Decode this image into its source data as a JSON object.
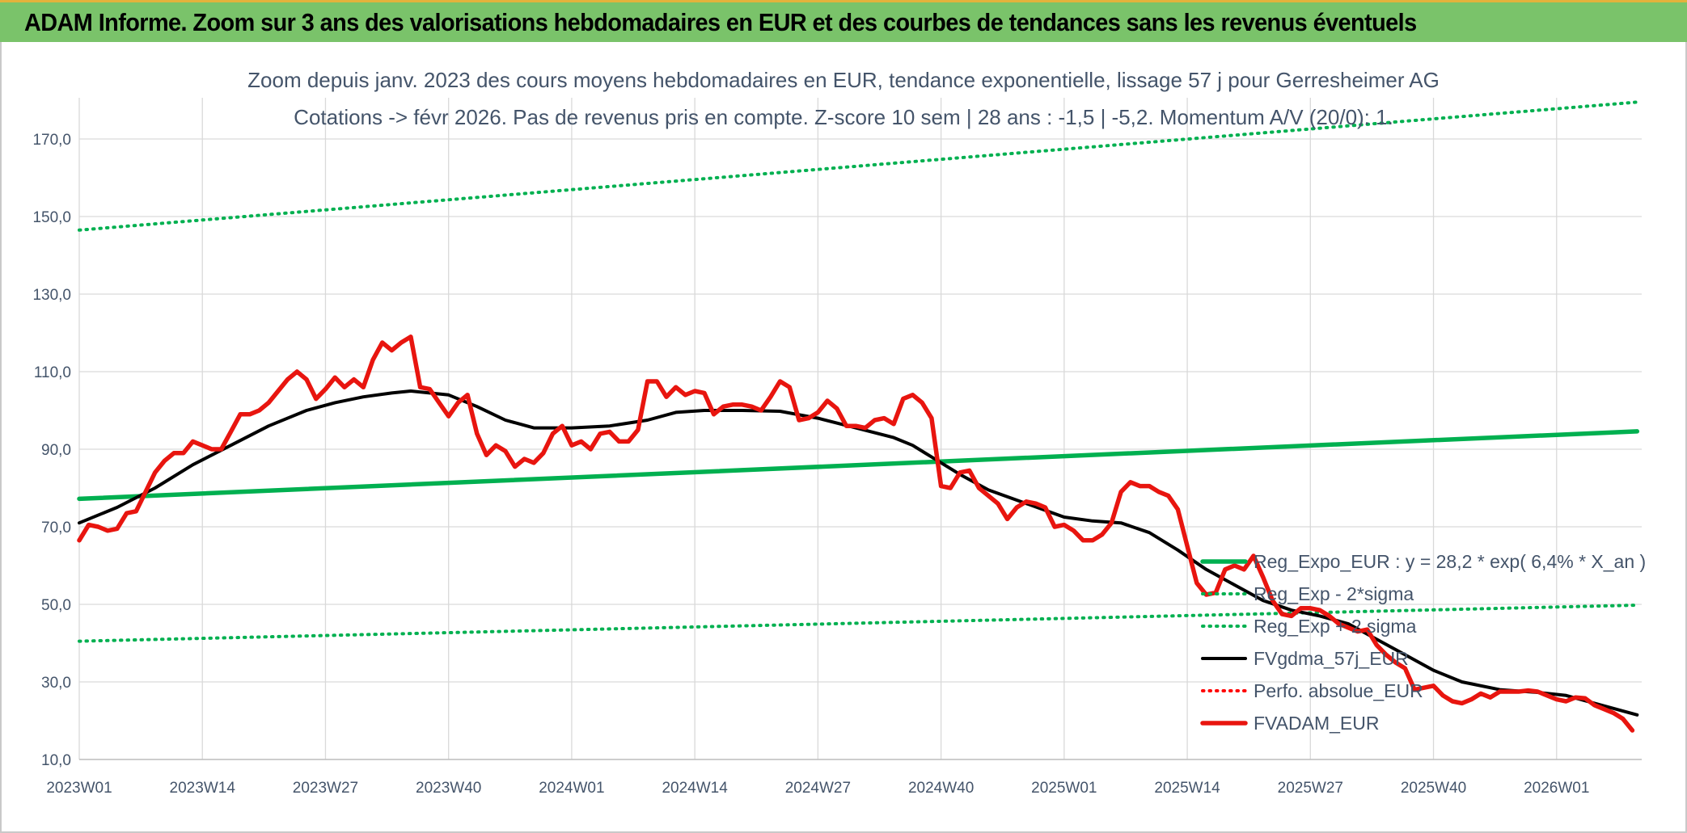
{
  "banner": {
    "title": "ADAM Informe. Zoom sur 3 ans des valorisations hebdomadaires en EUR et des courbes de tendances sans les revenus éventuels"
  },
  "chart_data": {
    "type": "line",
    "title": "Zoom depuis janv. 2023 des cours moyens hebdomadaires en EUR, tendance exponentielle, lissage 57 j pour Gerresheimer AG",
    "subtitle": "Cotations -> févr 2026. Pas de revenus pris en compte. Z-score 10 sem | 28 ans : -1,5 | -5,2. Momentum A/V (20/0): 1.",
    "xlabel": "",
    "ylabel": "",
    "ylim": [
      10,
      180
    ],
    "y_ticks": [
      10,
      30,
      50,
      70,
      90,
      110,
      130,
      150,
      170
    ],
    "y_tick_labels": [
      "10,0",
      "30,0",
      "50,0",
      "70,0",
      "90,0",
      "110,0",
      "130,0",
      "150,0",
      "170,0"
    ],
    "x_ticks": [
      {
        "week": 0,
        "label": "2023W01"
      },
      {
        "week": 13,
        "label": "2023W14"
      },
      {
        "week": 26,
        "label": "2023W27"
      },
      {
        "week": 39,
        "label": "2023W40"
      },
      {
        "week": 52,
        "label": "2024W01"
      },
      {
        "week": 65,
        "label": "2024W14"
      },
      {
        "week": 78,
        "label": "2024W27"
      },
      {
        "week": 91,
        "label": "2024W40"
      },
      {
        "week": 104,
        "label": "2025W01"
      },
      {
        "week": 117,
        "label": "2025W14"
      },
      {
        "week": 130,
        "label": "2025W27"
      },
      {
        "week": 143,
        "label": "2025W40"
      },
      {
        "week": 156,
        "label": "2026W01"
      }
    ],
    "xlim": [
      0,
      164.5
    ],
    "grid": true,
    "legend_position": "bottom-right",
    "series": [
      {
        "name": "Reg_Expo_EUR : y = 28,2 * exp( 6,4% *  X_an )",
        "color": "#00b050",
        "style": "solid-thick",
        "points": [
          [
            0,
            77.2
          ],
          [
            164.5,
            94.6
          ]
        ]
      },
      {
        "name": "Reg_Exp - 2*sigma",
        "color": "#00b050",
        "style": "dotted",
        "points": [
          [
            0,
            40.5
          ],
          [
            164.5,
            49.8
          ]
        ]
      },
      {
        "name": "Reg_Exp + 2 sigma",
        "color": "#00b050",
        "style": "dotted",
        "points": [
          [
            0,
            146.5
          ],
          [
            164.5,
            179.5
          ]
        ]
      },
      {
        "name": "FVgdma_57j_EUR",
        "color": "#000000",
        "style": "solid",
        "points": [
          [
            0,
            71
          ],
          [
            4,
            75
          ],
          [
            8,
            80
          ],
          [
            12,
            86
          ],
          [
            16,
            91
          ],
          [
            20,
            96
          ],
          [
            24,
            100
          ],
          [
            27,
            102
          ],
          [
            30,
            103.5
          ],
          [
            33,
            104.5
          ],
          [
            35,
            105
          ],
          [
            39,
            104
          ],
          [
            42,
            101
          ],
          [
            45,
            97.5
          ],
          [
            48,
            95.5
          ],
          [
            52,
            95.5
          ],
          [
            56,
            96
          ],
          [
            60,
            97.5
          ],
          [
            63,
            99.5
          ],
          [
            66,
            100
          ],
          [
            70,
            100
          ],
          [
            74,
            99.8
          ],
          [
            78,
            98
          ],
          [
            82,
            95.5
          ],
          [
            86,
            93
          ],
          [
            88,
            91
          ],
          [
            90,
            88
          ],
          [
            93,
            83.5
          ],
          [
            96,
            79.5
          ],
          [
            100,
            76
          ],
          [
            104,
            72.5
          ],
          [
            107,
            71.5
          ],
          [
            110,
            71
          ],
          [
            113,
            68.5
          ],
          [
            116,
            64
          ],
          [
            119,
            59
          ],
          [
            122,
            55
          ],
          [
            125,
            51
          ],
          [
            128,
            48.5
          ],
          [
            131,
            47
          ],
          [
            134,
            45
          ],
          [
            137,
            41
          ],
          [
            140,
            37
          ],
          [
            143,
            33
          ],
          [
            146,
            30
          ],
          [
            150,
            28
          ],
          [
            154,
            27.3
          ],
          [
            157,
            26.5
          ],
          [
            160,
            24.5
          ],
          [
            164.5,
            21.5
          ]
        ]
      },
      {
        "name": "Perfo. absolue_EUR",
        "color": "#ff0000",
        "style": "dotted",
        "points": []
      },
      {
        "name": "FVADAM_EUR",
        "color": "#e8150f",
        "style": "solid-thick",
        "points": [
          [
            0,
            66.5
          ],
          [
            1,
            70.5
          ],
          [
            2,
            70
          ],
          [
            3,
            69
          ],
          [
            4,
            69.5
          ],
          [
            5,
            73.5
          ],
          [
            6,
            74
          ],
          [
            7,
            79
          ],
          [
            8,
            84
          ],
          [
            9,
            87
          ],
          [
            10,
            89
          ],
          [
            11,
            89
          ],
          [
            12,
            92
          ],
          [
            13,
            91
          ],
          [
            14,
            90
          ],
          [
            15,
            90
          ],
          [
            16,
            94.5
          ],
          [
            17,
            99
          ],
          [
            18,
            99
          ],
          [
            19,
            100
          ],
          [
            20,
            102
          ],
          [
            21,
            105
          ],
          [
            22,
            108
          ],
          [
            23,
            110
          ],
          [
            24,
            108
          ],
          [
            25,
            103
          ],
          [
            26,
            105.5
          ],
          [
            27,
            108.5
          ],
          [
            28,
            106
          ],
          [
            29,
            108
          ],
          [
            30,
            106
          ],
          [
            31,
            113
          ],
          [
            32,
            117.5
          ],
          [
            33,
            115.5
          ],
          [
            34,
            117.5
          ],
          [
            35,
            119
          ],
          [
            36,
            106
          ],
          [
            37,
            105.5
          ],
          [
            38,
            102
          ],
          [
            39,
            98.5
          ],
          [
            40,
            102
          ],
          [
            41,
            104
          ],
          [
            42,
            94
          ],
          [
            43,
            88.5
          ],
          [
            44,
            91
          ],
          [
            45,
            89.5
          ],
          [
            46,
            85.5
          ],
          [
            47,
            87.5
          ],
          [
            48,
            86.5
          ],
          [
            49,
            89
          ],
          [
            50,
            94
          ],
          [
            51,
            96
          ],
          [
            52,
            91
          ],
          [
            53,
            92
          ],
          [
            54,
            90
          ],
          [
            55,
            94
          ],
          [
            56,
            94.5
          ],
          [
            57,
            92
          ],
          [
            58,
            92
          ],
          [
            59,
            95
          ],
          [
            60,
            107.5
          ],
          [
            61,
            107.5
          ],
          [
            62,
            103.5
          ],
          [
            63,
            106
          ],
          [
            64,
            104
          ],
          [
            65,
            105
          ],
          [
            66,
            104.5
          ],
          [
            67,
            99
          ],
          [
            68,
            101
          ],
          [
            69,
            101.5
          ],
          [
            70,
            101.5
          ],
          [
            71,
            101
          ],
          [
            72,
            100
          ],
          [
            73,
            103.5
          ],
          [
            74,
            107.5
          ],
          [
            75,
            106
          ],
          [
            76,
            97.5
          ],
          [
            77,
            98
          ],
          [
            78,
            99.5
          ],
          [
            79,
            102.5
          ],
          [
            80,
            100.5
          ],
          [
            81,
            96
          ],
          [
            82,
            96
          ],
          [
            83,
            95.5
          ],
          [
            84,
            97.5
          ],
          [
            85,
            98
          ],
          [
            86,
            96.5
          ],
          [
            87,
            103
          ],
          [
            88,
            104
          ],
          [
            89,
            102
          ],
          [
            90,
            98
          ],
          [
            91,
            80.5
          ],
          [
            92,
            80
          ],
          [
            93,
            84
          ],
          [
            94,
            84.5
          ],
          [
            95,
            80
          ],
          [
            96,
            78
          ],
          [
            97,
            76
          ],
          [
            98,
            72
          ],
          [
            99,
            75
          ],
          [
            100,
            76.5
          ],
          [
            101,
            76
          ],
          [
            102,
            75
          ],
          [
            103,
            70
          ],
          [
            104,
            70.5
          ],
          [
            105,
            69
          ],
          [
            106,
            66.5
          ],
          [
            107,
            66.5
          ],
          [
            108,
            68
          ],
          [
            109,
            71
          ],
          [
            110,
            79
          ],
          [
            111,
            81.5
          ],
          [
            112,
            80.5
          ],
          [
            113,
            80.5
          ],
          [
            114,
            79
          ],
          [
            115,
            78
          ],
          [
            116,
            74.5
          ],
          [
            117,
            65
          ],
          [
            118,
            55.5
          ],
          [
            119,
            52.5
          ],
          [
            120,
            53
          ],
          [
            121,
            59
          ],
          [
            122,
            60
          ],
          [
            123,
            59
          ],
          [
            124,
            62.5
          ],
          [
            125,
            57
          ],
          [
            126,
            51
          ],
          [
            127,
            47.5
          ],
          [
            128,
            47
          ],
          [
            129,
            49
          ],
          [
            130,
            49
          ],
          [
            131,
            48.5
          ],
          [
            132,
            47
          ],
          [
            133,
            45
          ],
          [
            134,
            44
          ],
          [
            135,
            43
          ],
          [
            136,
            43.5
          ],
          [
            137,
            39.5
          ],
          [
            138,
            37
          ],
          [
            139,
            35
          ],
          [
            140,
            33.5
          ],
          [
            141,
            28
          ],
          [
            142,
            28.5
          ],
          [
            143,
            29
          ],
          [
            144,
            26.5
          ],
          [
            145,
            25
          ],
          [
            146,
            24.5
          ],
          [
            147,
            25.5
          ],
          [
            148,
            27
          ],
          [
            149,
            26
          ],
          [
            150,
            27.5
          ],
          [
            151,
            27.5
          ],
          [
            152,
            27.5
          ],
          [
            153,
            27.8
          ],
          [
            154,
            27.5
          ],
          [
            155,
            26.5
          ],
          [
            156,
            25.5
          ],
          [
            157,
            25
          ],
          [
            158,
            26
          ],
          [
            159,
            25.8
          ],
          [
            160,
            24
          ],
          [
            161,
            23
          ],
          [
            162,
            22
          ],
          [
            163,
            20.5
          ],
          [
            164,
            17.5
          ]
        ]
      }
    ]
  }
}
